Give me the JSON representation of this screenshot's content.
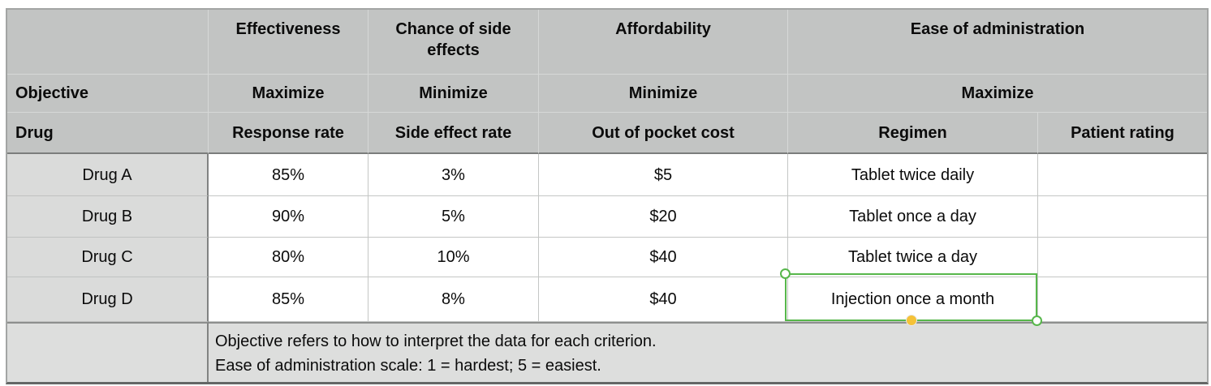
{
  "table": {
    "header": {
      "criteria_row": {
        "blank": "",
        "effectiveness": "Effectiveness",
        "side_effects": "Chance of side effects",
        "affordability": "Affordability",
        "ease_of_administration": "Ease of administration"
      },
      "objective_row": {
        "label": "Objective",
        "effectiveness": "Maximize",
        "side_effects": "Minimize",
        "affordability": "Minimize",
        "ease_of_administration": "Maximize"
      },
      "measure_row": {
        "label": "Drug",
        "effectiveness": "Response rate",
        "side_effects": "Side effect rate",
        "affordability": "Out of pocket cost",
        "regimen": "Regimen",
        "patient_rating": "Patient rating"
      }
    },
    "rows": [
      {
        "name": "Drug A",
        "response_rate": "85%",
        "side_effect_rate": "3%",
        "out_of_pocket_cost": "$5",
        "regimen": "Tablet twice daily",
        "patient_rating": ""
      },
      {
        "name": "Drug B",
        "response_rate": "90%",
        "side_effect_rate": "5%",
        "out_of_pocket_cost": "$20",
        "regimen": "Tablet once a day",
        "patient_rating": ""
      },
      {
        "name": "Drug C",
        "response_rate": "80%",
        "side_effect_rate": "10%",
        "out_of_pocket_cost": "$40",
        "regimen": "Tablet twice a day",
        "patient_rating": ""
      },
      {
        "name": "Drug D",
        "response_rate": "85%",
        "side_effect_rate": "8%",
        "out_of_pocket_cost": "$40",
        "regimen": "Injection once a month",
        "patient_rating": ""
      }
    ],
    "footnote": {
      "line1": "Objective refers to how to interpret the data for each criterion.",
      "line2": "Ease of administration scale: 1 = hardest; 5 = easiest."
    }
  },
  "selection": {
    "selected_cell_text": "Injection once a month",
    "selected_row": "Drug D",
    "selected_column": "Regimen"
  },
  "colors": {
    "selection_border": "#57b74b",
    "selection_handle_fill": "#ffffff",
    "autofill_handle": "#f5c237",
    "header_background": "#c2c4c3",
    "row_label_background": "#dadbda",
    "footnote_background": "#dddedd",
    "gridline": "#c4c6c5",
    "dark_divider": "#7b7d7c"
  }
}
